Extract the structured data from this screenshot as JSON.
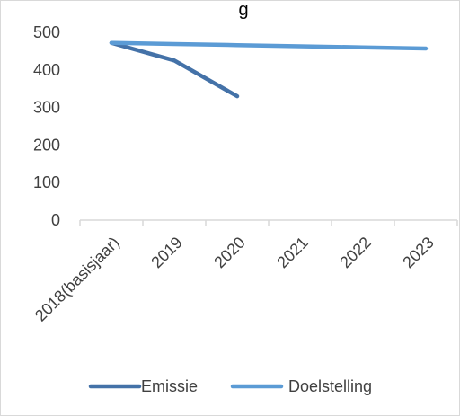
{
  "chart_data": {
    "type": "line",
    "title": "g",
    "categories": [
      "2018(basisjaar)",
      "2019",
      "2020",
      "2021",
      "2022",
      "2023"
    ],
    "series": [
      {
        "name": "Emissie",
        "values": [
          472,
          425,
          330,
          null,
          null,
          null
        ],
        "color": "#4472a8"
      },
      {
        "name": "Doelstelling",
        "values": [
          472,
          469,
          466,
          463,
          460,
          457
        ],
        "color": "#5b9bd5"
      }
    ],
    "yticks": [
      0,
      100,
      200,
      300,
      400,
      500
    ],
    "ylim": [
      0,
      500
    ],
    "grid": false,
    "legend": "bottom"
  }
}
